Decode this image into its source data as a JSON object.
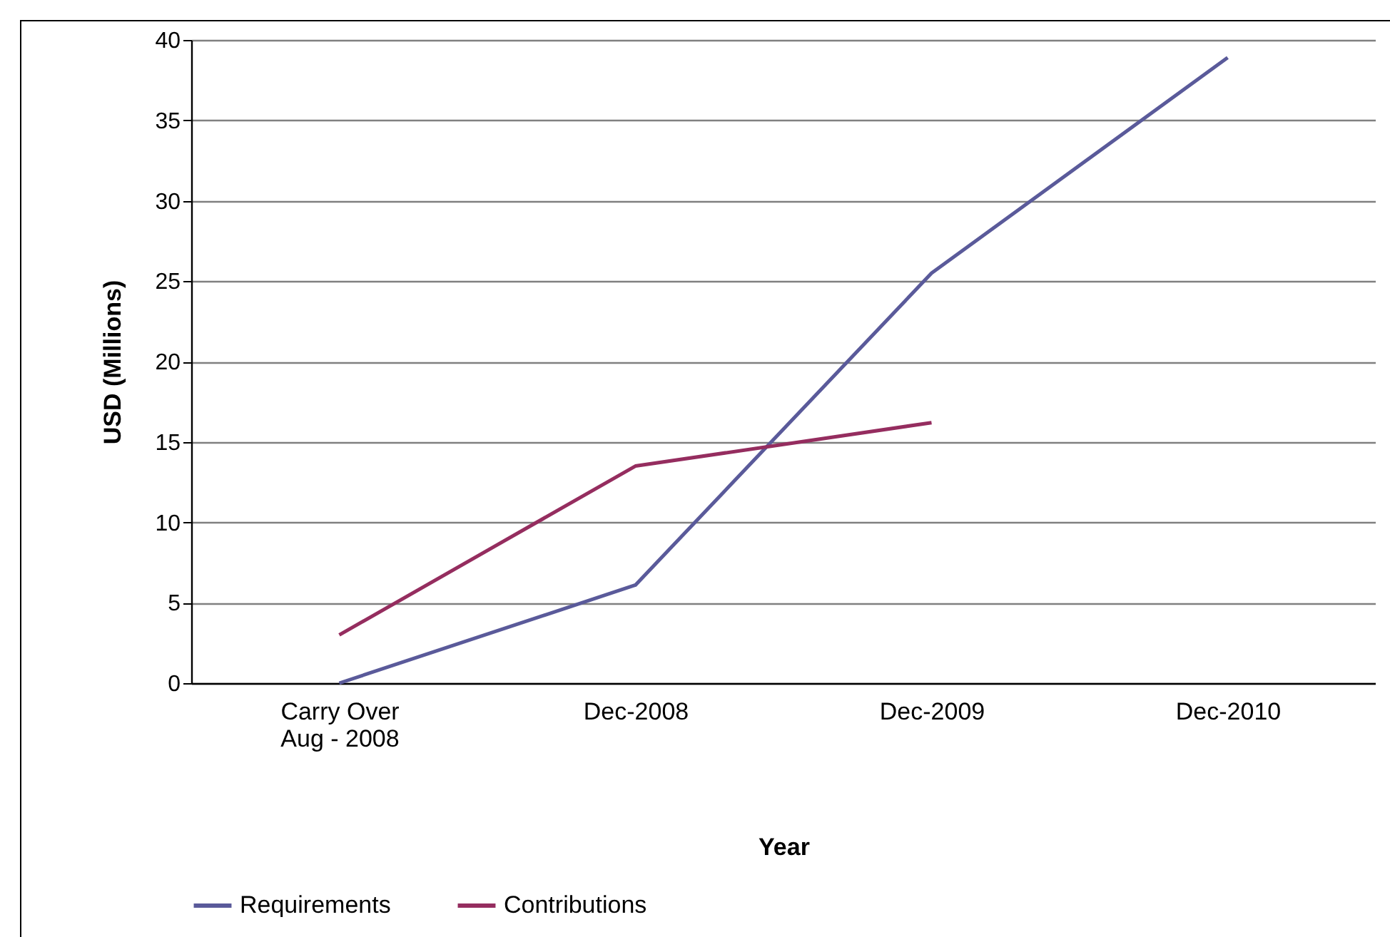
{
  "chart_data": {
    "type": "line",
    "xlabel": "Year",
    "ylabel": "USD (Millions)",
    "categories": [
      "Carry Over\nAug - 2008",
      "Dec-2008",
      "Dec-2009",
      "Dec-2010"
    ],
    "series": [
      {
        "name": "Requirements",
        "color": "#5a5a9a",
        "values": [
          0,
          6.1,
          25.5,
          38.9
        ]
      },
      {
        "name": "Contributions",
        "color": "#952d5f",
        "values": [
          3,
          13.5,
          16.2,
          null
        ]
      }
    ],
    "ylim": [
      0,
      40
    ],
    "yticks": [
      0,
      5,
      10,
      15,
      20,
      25,
      30,
      35,
      40
    ],
    "grid": "y",
    "legend": "bottom",
    "marker": "none",
    "line_style": "solid"
  }
}
